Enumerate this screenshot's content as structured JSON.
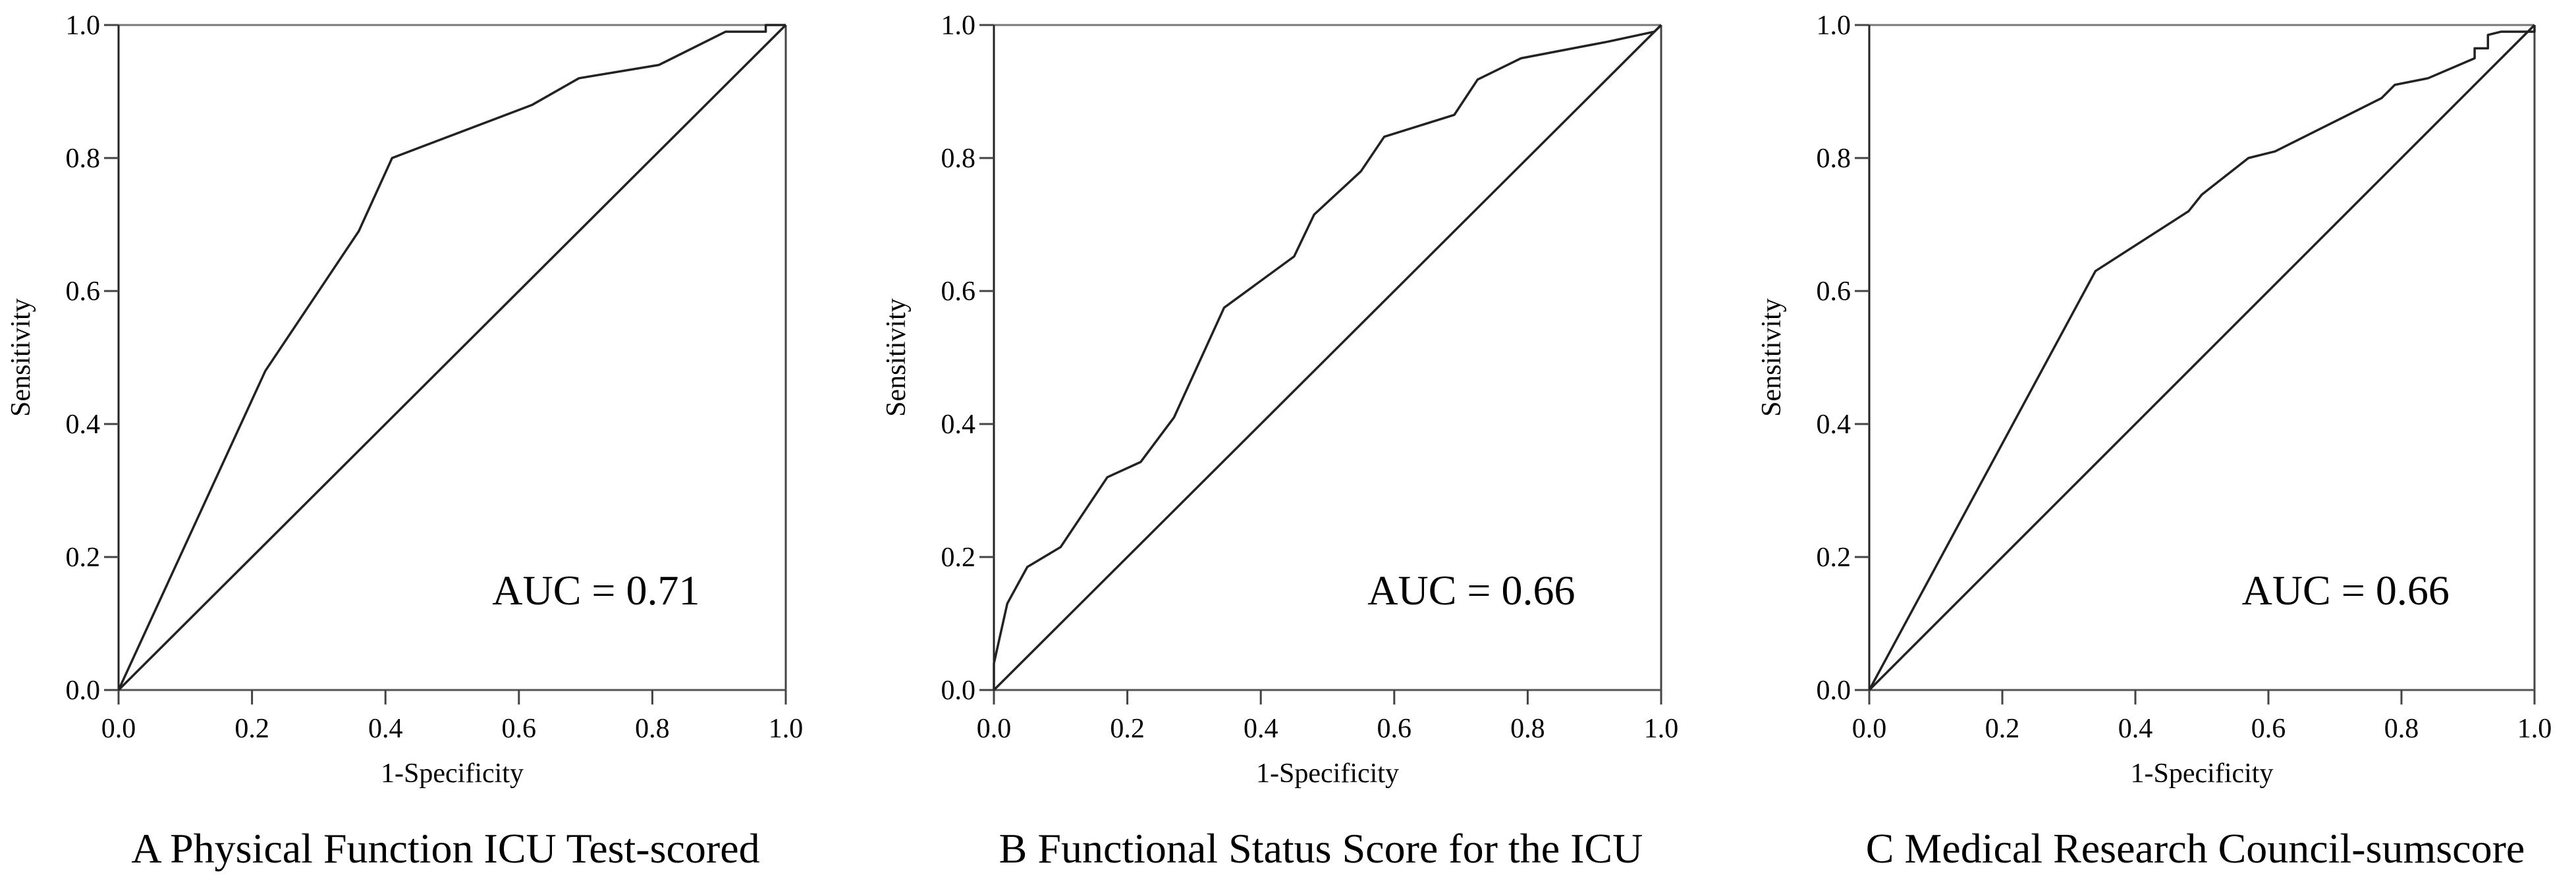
{
  "chart_data": [
    {
      "type": "line",
      "caption": "A  Physical Function ICU Test-scored",
      "annotation": "AUC = 0.71",
      "xlabel": "1-Specificity",
      "ylabel": "Sensitivity",
      "xlim": [
        0,
        1
      ],
      "ylim": [
        0,
        1
      ],
      "xticks": [
        "0.0",
        "0.2",
        "0.4",
        "0.6",
        "0.8",
        "1.0"
      ],
      "yticks": [
        "0.0",
        "0.2",
        "0.4",
        "0.6",
        "0.8",
        "1.0"
      ],
      "grid": false,
      "series": [
        {
          "x": [
            0,
            0.22,
            0.36,
            0.41,
            0.62,
            0.69,
            0.81,
            0.91,
            0.97,
            0.97,
            1.0
          ],
          "y": [
            0,
            0.48,
            0.69,
            0.8,
            0.88,
            0.92,
            0.94,
            0.99,
            0.99,
            1.0,
            1.0
          ]
        },
        {
          "x": [
            0,
            1
          ],
          "y": [
            0,
            1
          ]
        }
      ]
    },
    {
      "type": "line",
      "caption": "B  Functional Status Score for the ICU",
      "annotation": "AUC = 0.66",
      "xlabel": "1-Specificity",
      "ylabel": "Sensitivity",
      "xlim": [
        0,
        1
      ],
      "ylim": [
        0,
        1
      ],
      "xticks": [
        "0.0",
        "0.2",
        "0.4",
        "0.6",
        "0.8",
        "1.0"
      ],
      "yticks": [
        "0.0",
        "0.2",
        "0.4",
        "0.6",
        "0.8",
        "1.0"
      ],
      "grid": false,
      "series": [
        {
          "x": [
            0,
            0,
            0.02,
            0.05,
            0.1,
            0.17,
            0.22,
            0.27,
            0.345,
            0.45,
            0.48,
            0.55,
            0.585,
            0.69,
            0.725,
            0.79,
            0.92,
            0.99,
            1.0
          ],
          "y": [
            0,
            0.04,
            0.13,
            0.185,
            0.215,
            0.32,
            0.343,
            0.41,
            0.575,
            0.652,
            0.715,
            0.78,
            0.832,
            0.865,
            0.918,
            0.95,
            0.975,
            0.99,
            1.0
          ]
        },
        {
          "x": [
            0,
            1
          ],
          "y": [
            0,
            1
          ]
        }
      ]
    },
    {
      "type": "line",
      "caption": "C  Medical Research Council-sumscore",
      "annotation": "AUC = 0.66",
      "xlabel": "1-Specificity",
      "ylabel": "Sensitivity",
      "xlim": [
        0,
        1
      ],
      "ylim": [
        0,
        1
      ],
      "xticks": [
        "0.0",
        "0.2",
        "0.4",
        "0.6",
        "0.8",
        "1.0"
      ],
      "yticks": [
        "0.0",
        "0.2",
        "0.4",
        "0.6",
        "0.8",
        "1.0"
      ],
      "grid": false,
      "series": [
        {
          "x": [
            0,
            0.34,
            0.48,
            0.5,
            0.57,
            0.61,
            0.66,
            0.68,
            0.77,
            0.79,
            0.84,
            0.91,
            0.91,
            0.93,
            0.93,
            0.95,
            1.0,
            1.0
          ],
          "y": [
            0,
            0.63,
            0.72,
            0.745,
            0.8,
            0.81,
            0.835,
            0.845,
            0.89,
            0.91,
            0.92,
            0.95,
            0.965,
            0.965,
            0.985,
            0.99,
            0.99,
            1.0
          ]
        },
        {
          "x": [
            0,
            1
          ],
          "y": [
            0,
            1
          ]
        }
      ]
    }
  ]
}
